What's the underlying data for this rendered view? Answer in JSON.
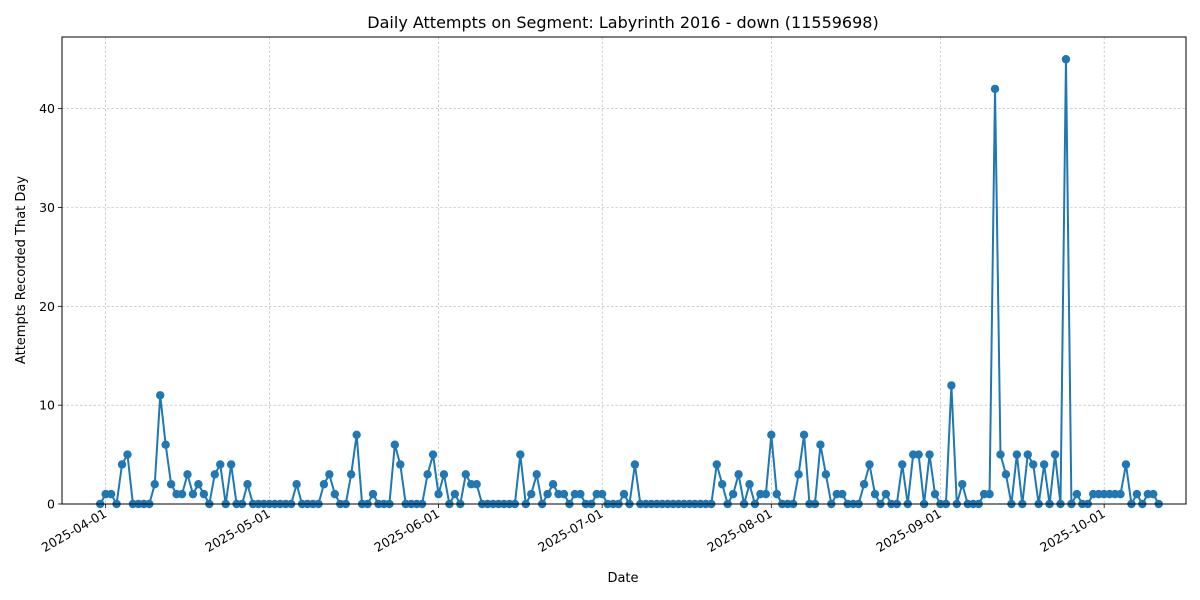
{
  "chart_data": {
    "type": "line",
    "title": "Daily Attempts on Segment: Labyrinth 2016 - down (11559698)",
    "xlabel": "Date",
    "ylabel": "Attempts Recorded That Day",
    "xlim": [
      "2025-03-24",
      "2025-10-16"
    ],
    "ylim": [
      0,
      47.25
    ],
    "x_ticks": [
      {
        "date": "2025-04-01",
        "label": "2025-04-01"
      },
      {
        "date": "2025-05-01",
        "label": "2025-05-01"
      },
      {
        "date": "2025-06-01",
        "label": "2025-06-01"
      },
      {
        "date": "2025-07-01",
        "label": "2025-07-01"
      },
      {
        "date": "2025-08-01",
        "label": "2025-08-01"
      },
      {
        "date": "2025-09-01",
        "label": "2025-09-01"
      },
      {
        "date": "2025-10-01",
        "label": "2025-10-01"
      }
    ],
    "y_ticks": [
      0,
      10,
      20,
      30,
      40
    ],
    "grid": true,
    "color": "#1f77b4",
    "series": [
      {
        "start_date": "2025-03-31",
        "values": [
          0,
          1,
          1,
          0,
          4,
          5,
          0,
          0,
          0,
          0,
          2,
          11,
          6,
          2,
          1,
          1,
          3,
          1,
          2,
          1,
          0,
          3,
          4,
          0,
          4,
          0,
          0,
          2,
          0,
          0,
          0,
          0,
          0,
          0,
          0,
          0,
          2,
          0,
          0,
          0,
          0,
          2,
          3,
          1,
          0,
          0,
          3,
          7,
          0,
          0,
          1,
          0,
          0,
          0,
          6,
          4,
          0,
          0,
          0,
          0,
          3,
          5,
          1,
          3,
          0,
          1,
          0,
          3,
          2,
          2,
          0,
          0,
          0,
          0,
          0,
          0,
          0,
          5,
          0,
          1,
          3,
          0,
          1,
          2,
          1,
          1,
          0,
          1,
          1,
          0,
          0,
          1,
          1,
          0,
          0,
          0,
          1,
          0,
          4,
          0,
          0,
          0,
          0,
          0,
          0,
          0,
          0,
          0,
          0,
          0,
          0,
          0,
          0,
          4,
          2,
          0,
          1,
          3,
          0,
          2,
          0,
          1,
          1,
          7,
          1,
          0,
          0,
          0,
          3,
          7,
          0,
          0,
          6,
          3,
          0,
          1,
          1,
          0,
          0,
          0,
          2,
          4,
          1,
          0,
          1,
          0,
          0,
          4,
          0,
          5,
          5,
          0,
          5,
          1,
          0,
          0,
          12,
          0,
          2,
          0,
          0,
          0,
          1,
          1,
          42,
          5,
          3,
          0,
          5,
          0,
          5,
          4,
          0,
          4,
          0,
          5,
          0,
          45,
          0,
          1,
          0,
          0,
          1,
          1,
          1,
          1,
          1,
          1,
          4,
          0,
          1,
          0,
          1,
          1,
          0
        ]
      }
    ]
  }
}
